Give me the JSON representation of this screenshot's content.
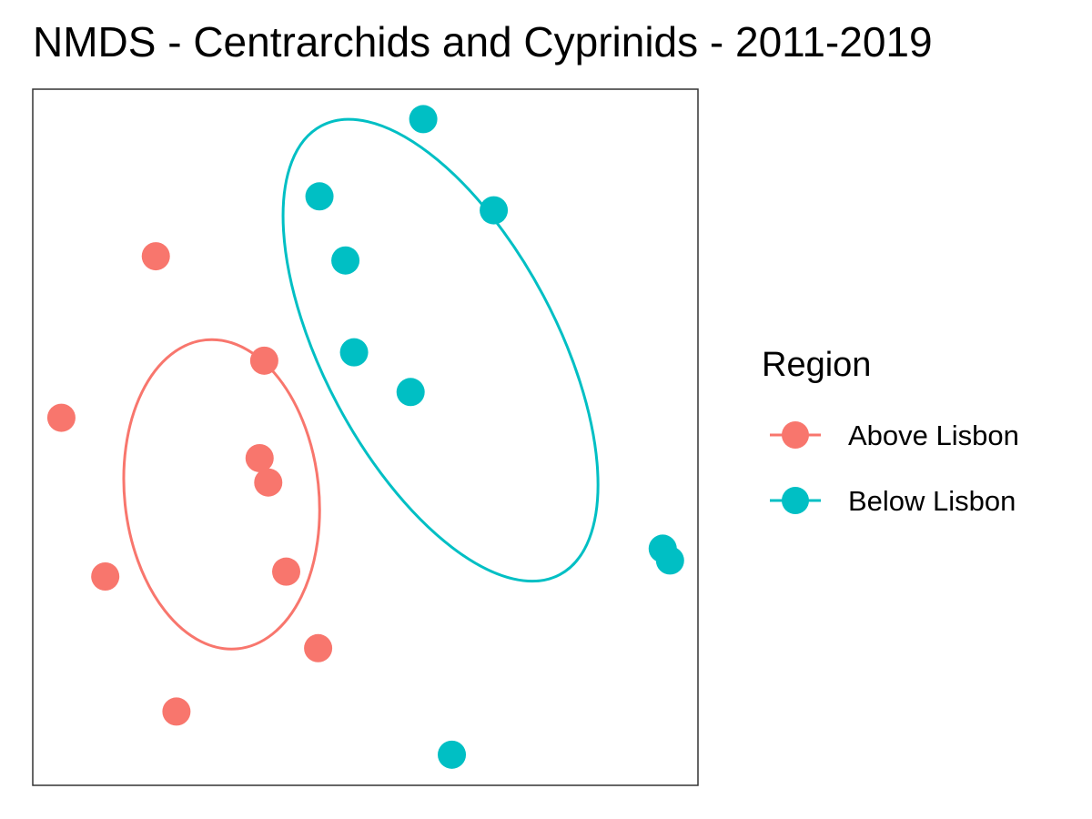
{
  "chart_data": {
    "type": "scatter",
    "title": "NMDS - Centrarchids and Cyprinids - 2011-2019",
    "xlabel": "",
    "ylabel": "",
    "xlim": [
      0,
      100
    ],
    "ylim": [
      0,
      100
    ],
    "axes_visible": false,
    "grid": false,
    "legend": {
      "title": "Region",
      "position": "right"
    },
    "series": [
      {
        "name": "Above Lisbon",
        "color": "#F8766D",
        "points": [
          {
            "x": 18.5,
            "y": 76.0
          },
          {
            "x": 4.3,
            "y": 52.8
          },
          {
            "x": 34.8,
            "y": 61.0
          },
          {
            "x": 34.1,
            "y": 47.0
          },
          {
            "x": 35.4,
            "y": 43.5
          },
          {
            "x": 10.9,
            "y": 30.0
          },
          {
            "x": 38.1,
            "y": 30.7
          },
          {
            "x": 42.9,
            "y": 19.7
          },
          {
            "x": 21.6,
            "y": 10.6
          }
        ],
        "ellipse": {
          "cx": 28.4,
          "cy": 41.8,
          "rx": 14.6,
          "ry": 22.3,
          "angle": 6
        }
      },
      {
        "name": "Below Lisbon",
        "color": "#00BFC4",
        "points": [
          {
            "x": 58.7,
            "y": 95.7
          },
          {
            "x": 43.1,
            "y": 84.6
          },
          {
            "x": 69.3,
            "y": 82.6
          },
          {
            "x": 47.0,
            "y": 75.4
          },
          {
            "x": 48.3,
            "y": 62.2
          },
          {
            "x": 56.8,
            "y": 56.5
          },
          {
            "x": 94.7,
            "y": 34.0
          },
          {
            "x": 95.8,
            "y": 32.3
          },
          {
            "x": 63.0,
            "y": 4.4
          }
        ],
        "ellipse": {
          "cx": 61.3,
          "cy": 62.5,
          "rx": 17.5,
          "ry": 36.5,
          "angle": 28
        }
      }
    ]
  }
}
